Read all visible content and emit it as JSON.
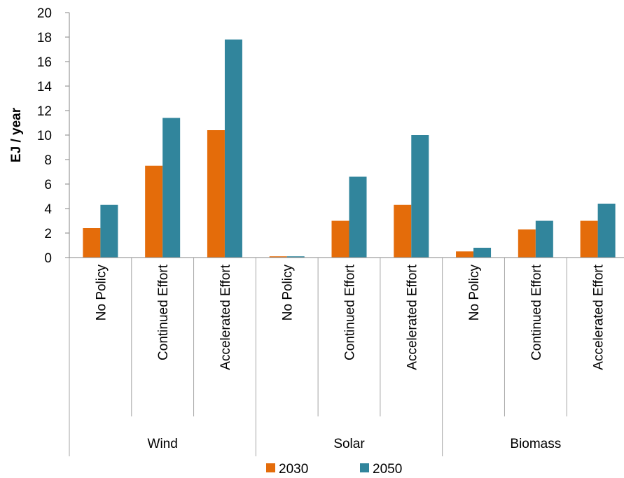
{
  "chart_data": {
    "type": "bar",
    "ylabel": "EJ / year",
    "ylim": [
      0,
      20
    ],
    "yticks": [
      "0",
      "2",
      "4",
      "6",
      "8",
      "10",
      "12",
      "14",
      "16",
      "18",
      "20"
    ],
    "groups": [
      {
        "name": "Wind",
        "categories": [
          "No Policy",
          "Continued Effort",
          "Accelerated Effort"
        ]
      },
      {
        "name": "Solar",
        "categories": [
          "No Policy",
          "Continued Effort",
          "Accelerated Effort"
        ]
      },
      {
        "name": "Biomass",
        "categories": [
          "No Policy",
          "Continued Effort",
          "Accelerated Effort"
        ]
      }
    ],
    "series": [
      {
        "name": "2030",
        "color": "#E46C0A",
        "values": [
          2.4,
          7.5,
          10.4,
          0.1,
          3.0,
          4.3,
          0.5,
          2.3,
          3.0
        ]
      },
      {
        "name": "2050",
        "color": "#31859C",
        "values": [
          4.3,
          11.4,
          17.8,
          0.1,
          6.6,
          10.0,
          0.8,
          3.0,
          4.4
        ]
      }
    ],
    "grid": false,
    "legend_position": "bottom-center"
  }
}
